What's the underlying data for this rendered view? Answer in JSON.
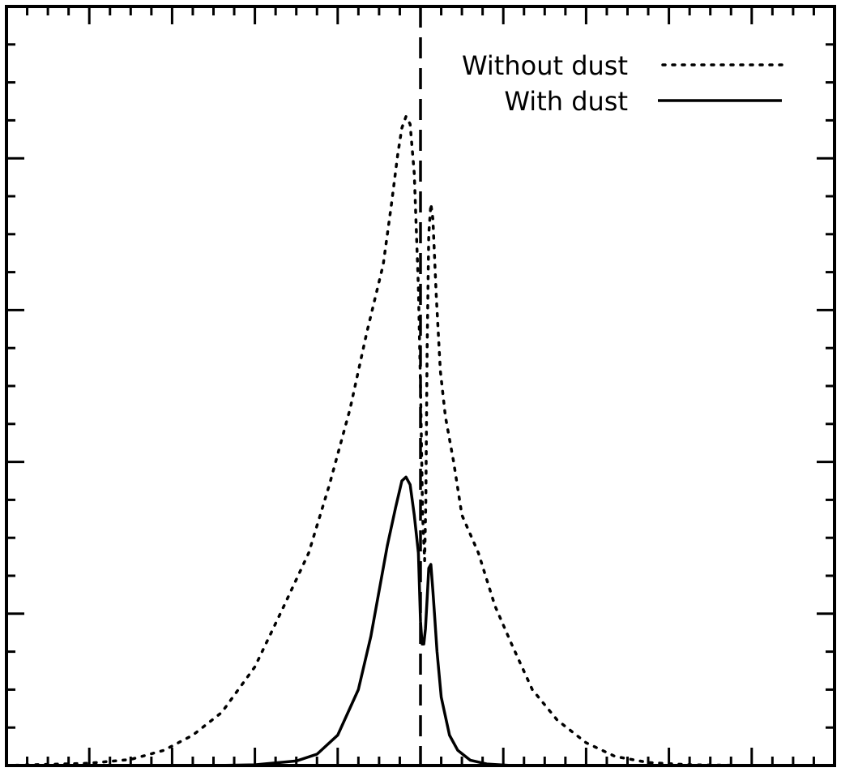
{
  "chart_data": {
    "type": "line",
    "title": "",
    "xlabel": "",
    "ylabel": "",
    "xlim": [
      -1.0,
      1.0
    ],
    "ylim": [
      0,
      1.0
    ],
    "grid": false,
    "legend_position": "top-right",
    "colors": {
      "line": "#000000",
      "background": "#ffffff"
    },
    "reference_line": {
      "x": 0.0,
      "style": "dashed"
    },
    "series": [
      {
        "name": "Without dust",
        "style": "dotted",
        "x": [
          -1.0,
          -0.8,
          -0.7,
          -0.62,
          -0.55,
          -0.48,
          -0.4,
          -0.33,
          -0.27,
          -0.22,
          -0.17,
          -0.13,
          -0.09,
          -0.07,
          -0.055,
          -0.045,
          -0.035,
          -0.025,
          -0.015,
          -0.005,
          0.0,
          0.005,
          0.01,
          0.013,
          0.016,
          0.02,
          0.025,
          0.03,
          0.038,
          0.048,
          0.06,
          0.08,
          0.1,
          0.14,
          0.18,
          0.22,
          0.27,
          0.33,
          0.4,
          0.47,
          0.55,
          0.65,
          0.8,
          1.0
        ],
        "y": [
          0.0,
          0.003,
          0.008,
          0.02,
          0.04,
          0.07,
          0.13,
          0.21,
          0.28,
          0.37,
          0.47,
          0.57,
          0.66,
          0.74,
          0.805,
          0.84,
          0.855,
          0.845,
          0.78,
          0.63,
          0.5,
          0.33,
          0.27,
          0.35,
          0.55,
          0.7,
          0.74,
          0.72,
          0.62,
          0.52,
          0.46,
          0.4,
          0.33,
          0.28,
          0.21,
          0.16,
          0.1,
          0.06,
          0.03,
          0.012,
          0.004,
          0.001,
          0.0,
          0.0
        ]
      },
      {
        "name": "With dust",
        "style": "solid",
        "x": [
          -1.0,
          -0.5,
          -0.4,
          -0.3,
          -0.25,
          -0.2,
          -0.15,
          -0.12,
          -0.1,
          -0.08,
          -0.06,
          -0.045,
          -0.035,
          -0.025,
          -0.015,
          -0.005,
          0.0,
          0.004,
          0.008,
          0.012,
          0.016,
          0.02,
          0.025,
          0.03,
          0.035,
          0.04,
          0.05,
          0.07,
          0.09,
          0.12,
          0.16,
          0.22,
          0.35,
          1.0
        ],
        "y": [
          0.0,
          0.0,
          0.001,
          0.006,
          0.015,
          0.04,
          0.1,
          0.17,
          0.23,
          0.29,
          0.34,
          0.375,
          0.38,
          0.37,
          0.33,
          0.28,
          0.19,
          0.16,
          0.16,
          0.18,
          0.22,
          0.26,
          0.265,
          0.23,
          0.19,
          0.15,
          0.09,
          0.04,
          0.02,
          0.007,
          0.002,
          0.0,
          0.0,
          0.0
        ]
      }
    ]
  },
  "legend": {
    "items": [
      {
        "label": "Without dust",
        "style": "dotted"
      },
      {
        "label": "With dust",
        "style": "solid"
      }
    ]
  }
}
